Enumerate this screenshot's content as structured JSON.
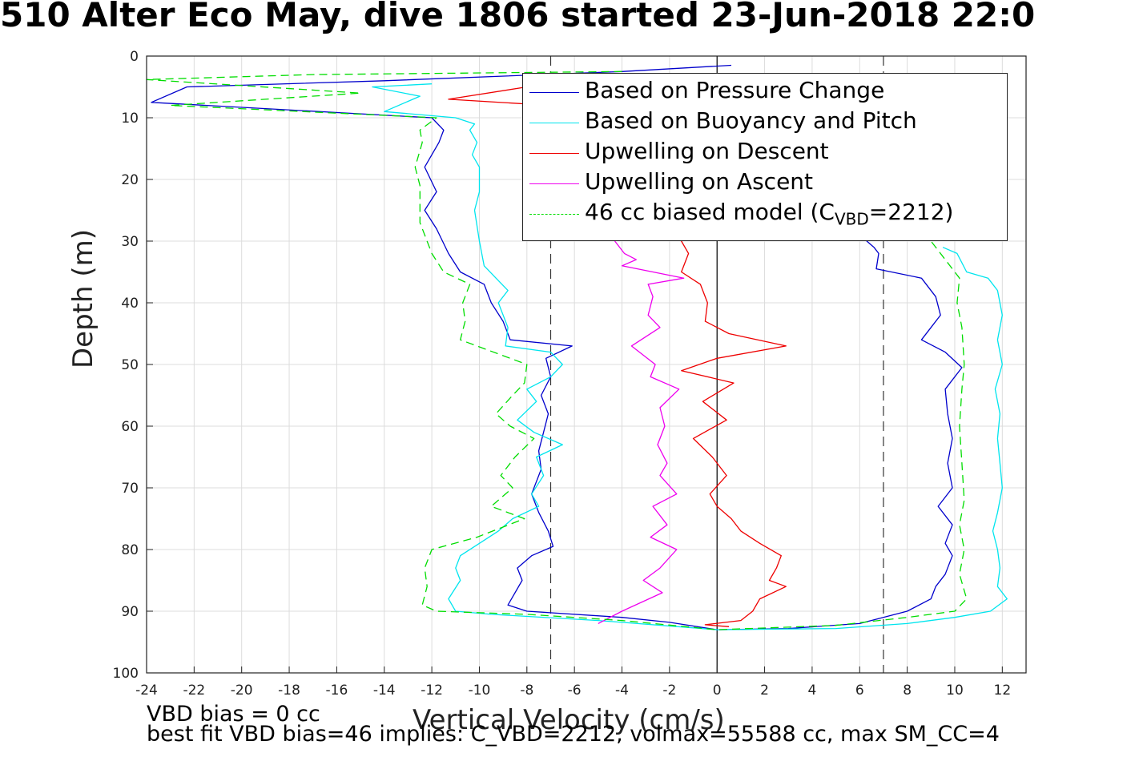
{
  "title": "510 Alter Eco May, dive 1806 started 23-Jun-2018 22:0",
  "notes": {
    "line1": "VBD bias = 0 cc",
    "line2": "best fit VBD bias=46 implies: C_VBD=2212, volmax=55588 cc, max SM_CC=4"
  },
  "chart_data": {
    "type": "line",
    "xlabel": "Vertical Velocity (cm/s)",
    "ylabel": "Depth (m)",
    "xlim": [
      -24,
      13
    ],
    "ylim": [
      100,
      0
    ],
    "xticks": [
      -24,
      -22,
      -20,
      -18,
      -16,
      -14,
      -12,
      -10,
      -8,
      -6,
      -4,
      -2,
      0,
      2,
      4,
      6,
      8,
      10,
      12
    ],
    "yticks": [
      0,
      10,
      20,
      30,
      40,
      50,
      60,
      70,
      80,
      90,
      100
    ],
    "grid": true,
    "legend_position": "top-right",
    "vertical_reference_lines": [
      -7,
      0,
      7
    ],
    "series": [
      {
        "name": "Based on Pressure Change",
        "color": "#0000cc",
        "dash": "solid",
        "points": [
          [
            0.6,
            1.5
          ],
          [
            -4,
            2.5
          ],
          [
            -14,
            4
          ],
          [
            -22.3,
            5
          ],
          [
            -23.8,
            7.5
          ],
          [
            -12,
            10
          ],
          [
            -11.5,
            12
          ],
          [
            -11.7,
            14
          ],
          [
            -12,
            16
          ],
          [
            -12.3,
            18
          ],
          [
            -11.8,
            22
          ],
          [
            -12.3,
            25
          ],
          [
            -11.8,
            28
          ],
          [
            -11.3,
            32
          ],
          [
            -10.8,
            35
          ],
          [
            -9.8,
            37
          ],
          [
            -9.5,
            40
          ],
          [
            -9,
            43
          ],
          [
            -8.7,
            46
          ],
          [
            -6.1,
            47
          ],
          [
            -7.2,
            49
          ],
          [
            -7,
            52
          ],
          [
            -7.4,
            55
          ],
          [
            -7.1,
            58
          ],
          [
            -7.3,
            61
          ],
          [
            -7.5,
            64
          ],
          [
            -7.4,
            67
          ],
          [
            -7.8,
            71
          ],
          [
            -7.5,
            74
          ],
          [
            -7.1,
            77
          ],
          [
            -6.9,
            79.5
          ],
          [
            -7.8,
            81
          ],
          [
            -8.4,
            83
          ],
          [
            -8.2,
            85
          ],
          [
            -8.5,
            87
          ],
          [
            -8.8,
            89
          ],
          [
            -8,
            90
          ],
          [
            -4,
            91
          ],
          [
            -2,
            91.8
          ],
          [
            0,
            93
          ],
          [
            3,
            92.8
          ],
          [
            6,
            92
          ],
          [
            8,
            90
          ],
          [
            9,
            88
          ],
          [
            9.2,
            86
          ],
          [
            9.6,
            84
          ],
          [
            9.9,
            81
          ],
          [
            9.6,
            79
          ],
          [
            9.9,
            76
          ],
          [
            9.3,
            73
          ],
          [
            9.9,
            70
          ],
          [
            9.7,
            66
          ],
          [
            9.9,
            62
          ],
          [
            9.7,
            58
          ],
          [
            9.6,
            54
          ],
          [
            10.3,
            50.5
          ],
          [
            9.6,
            48
          ],
          [
            8.6,
            46
          ],
          [
            9,
            44
          ],
          [
            9.4,
            42
          ],
          [
            9.2,
            39
          ],
          [
            8.6,
            36
          ],
          [
            6.7,
            34.5
          ],
          [
            6.8,
            32
          ],
          [
            6.6,
            31
          ],
          [
            6,
            29
          ]
        ]
      },
      {
        "name": "Based on Buoyancy and Pitch",
        "color": "#00e5ee",
        "dash": "solid",
        "points": [
          [
            -12,
            4.5
          ],
          [
            -14.5,
            5
          ],
          [
            -12.5,
            6.5
          ],
          [
            -14,
            9
          ],
          [
            -11,
            10
          ],
          [
            -10.2,
            11
          ],
          [
            -10.4,
            12
          ],
          [
            -10.1,
            14
          ],
          [
            -10.3,
            16
          ],
          [
            -10,
            18
          ],
          [
            -10,
            22
          ],
          [
            -10.2,
            25
          ],
          [
            -10,
            30
          ],
          [
            -9.8,
            34
          ],
          [
            -9.3,
            36
          ],
          [
            -8.8,
            38
          ],
          [
            -9.2,
            40
          ],
          [
            -8.8,
            44
          ],
          [
            -8.9,
            47
          ],
          [
            -7,
            48
          ],
          [
            -6.5,
            50
          ],
          [
            -7,
            52
          ],
          [
            -8,
            54
          ],
          [
            -7.6,
            56
          ],
          [
            -8.4,
            59
          ],
          [
            -7.7,
            61
          ],
          [
            -6.5,
            63
          ],
          [
            -7.6,
            65
          ],
          [
            -7.3,
            68
          ],
          [
            -7.8,
            71
          ],
          [
            -7.5,
            73
          ],
          [
            -8.6,
            75
          ],
          [
            -9.2,
            77
          ],
          [
            -10,
            79
          ],
          [
            -10.8,
            81
          ],
          [
            -11,
            83
          ],
          [
            -10.8,
            85
          ],
          [
            -11.3,
            88
          ],
          [
            -11,
            90
          ],
          [
            -9.5,
            90.5
          ],
          [
            -5,
            91.5
          ],
          [
            0,
            93
          ],
          [
            5,
            92.8
          ],
          [
            8,
            92
          ],
          [
            10,
            91
          ],
          [
            11.5,
            90
          ],
          [
            12.2,
            88
          ],
          [
            11.8,
            86
          ],
          [
            11.9,
            83
          ],
          [
            11.8,
            80
          ],
          [
            11.6,
            77
          ],
          [
            11.8,
            74
          ],
          [
            12,
            70
          ],
          [
            11.9,
            66
          ],
          [
            11.8,
            62
          ],
          [
            11.9,
            58
          ],
          [
            11.7,
            54
          ],
          [
            12,
            50
          ],
          [
            11.8,
            46
          ],
          [
            12,
            42
          ],
          [
            11.8,
            38
          ],
          [
            11.4,
            36
          ],
          [
            10.5,
            35
          ],
          [
            10.1,
            32
          ],
          [
            9.5,
            31
          ]
        ]
      },
      {
        "name": "Upwelling on Descent",
        "color": "#ee0000",
        "dash": "solid",
        "points": [
          [
            -8,
            5
          ],
          [
            -11.3,
            7
          ],
          [
            -7,
            8
          ],
          [
            -1.5,
            30
          ],
          [
            -1.2,
            32
          ],
          [
            -1.5,
            35
          ],
          [
            -0.7,
            37
          ],
          [
            -0.4,
            40
          ],
          [
            -0.5,
            43
          ],
          [
            0.5,
            45
          ],
          [
            2.9,
            47
          ],
          [
            0,
            49
          ],
          [
            -1.5,
            51
          ],
          [
            0.7,
            53
          ],
          [
            -0.6,
            56
          ],
          [
            0.4,
            59
          ],
          [
            -1,
            62
          ],
          [
            -0.2,
            65
          ],
          [
            0.4,
            68
          ],
          [
            -0.3,
            71
          ],
          [
            0,
            73
          ],
          [
            0.6,
            75
          ],
          [
            1,
            77
          ],
          [
            1.8,
            79
          ],
          [
            2.7,
            81
          ],
          [
            2.5,
            83
          ],
          [
            2.2,
            85
          ],
          [
            2.9,
            86
          ],
          [
            1.8,
            88
          ],
          [
            1.5,
            90
          ],
          [
            1,
            91.5
          ],
          [
            -0.5,
            92.2
          ],
          [
            0.5,
            92.5
          ]
        ]
      },
      {
        "name": "Upwelling on Ascent",
        "color": "#ee00ee",
        "dash": "solid",
        "points": [
          [
            -5,
            92
          ],
          [
            -4,
            90
          ],
          [
            -2.3,
            87
          ],
          [
            -3.1,
            85
          ],
          [
            -2.4,
            83
          ],
          [
            -1.7,
            80
          ],
          [
            -2.8,
            78
          ],
          [
            -2.1,
            76
          ],
          [
            -2.7,
            73
          ],
          [
            -1.7,
            71
          ],
          [
            -2.4,
            68
          ],
          [
            -2.1,
            66
          ],
          [
            -2.5,
            63
          ],
          [
            -2.2,
            60
          ],
          [
            -2.4,
            57
          ],
          [
            -1.6,
            54
          ],
          [
            -2.8,
            52
          ],
          [
            -2.6,
            50
          ],
          [
            -3.6,
            47
          ],
          [
            -2.4,
            44
          ],
          [
            -2.9,
            42
          ],
          [
            -2.7,
            39
          ],
          [
            -2.9,
            37
          ],
          [
            -1.4,
            36
          ],
          [
            -4,
            34
          ],
          [
            -3.4,
            33
          ],
          [
            -3.9,
            32
          ],
          [
            -4.3,
            30
          ],
          [
            -4,
            28
          ]
        ]
      },
      {
        "name": "46 cc biased model (C",
        "name_sub": "VBD",
        "name_tail": "=2212)",
        "color": "#00dd00",
        "dash": "dashed",
        "points": [
          [
            -4,
            2.5
          ],
          [
            -17,
            3
          ],
          [
            -24,
            3.8
          ],
          [
            -15,
            6
          ],
          [
            -23,
            8
          ],
          [
            -11.8,
            10
          ],
          [
            -12.5,
            12
          ],
          [
            -12.4,
            14
          ],
          [
            -12.7,
            18
          ],
          [
            -12.5,
            21
          ],
          [
            -12.5,
            24
          ],
          [
            -12.5,
            27
          ],
          [
            -12,
            32
          ],
          [
            -11.5,
            35
          ],
          [
            -10.4,
            37
          ],
          [
            -10.7,
            40
          ],
          [
            -10.6,
            43
          ],
          [
            -10.8,
            46
          ],
          [
            -8,
            50
          ],
          [
            -8.1,
            53
          ],
          [
            -8.6,
            55
          ],
          [
            -9.3,
            58
          ],
          [
            -8.7,
            60
          ],
          [
            -7.7,
            62
          ],
          [
            -8.5,
            65
          ],
          [
            -9.1,
            68
          ],
          [
            -8.6,
            70
          ],
          [
            -9.5,
            73
          ],
          [
            -8.1,
            75
          ],
          [
            -10.1,
            78
          ],
          [
            -12,
            80
          ],
          [
            -12.3,
            83
          ],
          [
            -12.2,
            86
          ],
          [
            -12.4,
            89
          ],
          [
            -11.8,
            90
          ],
          [
            -8,
            90.5
          ],
          [
            -4,
            91.5
          ],
          [
            0,
            93
          ],
          [
            5,
            92.3
          ],
          [
            8,
            91
          ],
          [
            10,
            90
          ],
          [
            10.5,
            88
          ],
          [
            10.2,
            84
          ],
          [
            10.4,
            80
          ],
          [
            10.2,
            76
          ],
          [
            10.4,
            72
          ],
          [
            10.3,
            66
          ],
          [
            10.2,
            60
          ],
          [
            10.3,
            54
          ],
          [
            10.4,
            50
          ],
          [
            10.3,
            44
          ],
          [
            10.1,
            40
          ],
          [
            10.2,
            36
          ],
          [
            9.6,
            33
          ],
          [
            9,
            30
          ]
        ]
      }
    ]
  }
}
